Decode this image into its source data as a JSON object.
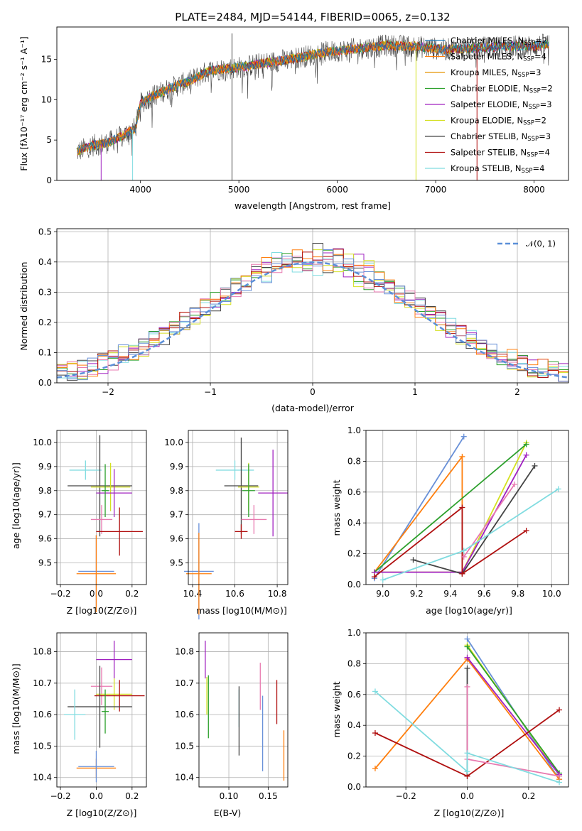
{
  "colors": {
    "chabrier_miles": "#1f77b4",
    "salpeter_miles": "#ff7f0e",
    "kroupa_miles": "#e59400",
    "chabrier_elodie": "#2ca02c",
    "salpeter_elodie": "#a020c0",
    "kroupa_elodie": "#d4e020",
    "chabrier_stelib": "#444444",
    "salpeter_stelib": "#b01010",
    "kroupa_stelib": "#80dce0",
    "pink": "#e87ab0",
    "blue2": "#6890d8",
    "grid": "#b0b0b0"
  },
  "chart_data": [
    {
      "id": "spectrum",
      "type": "line",
      "title": "PLATE=2484, MJD=54144, FIBERID=0065, z=0.132",
      "xlabel": "wavelength [Angstrom, rest frame]",
      "ylabel": "Flux [f$_\\lambda$10$^{-17}$ erg cm$^{-2}$ s$^{-1}$ A$^{-1}$]",
      "ylabel_display": "Flux [fλ10⁻¹⁷ erg cm⁻² s⁻¹ A⁻¹]",
      "xlim": [
        3150,
        8350
      ],
      "ylim": [
        0,
        19
      ],
      "xticks": [
        4000,
        5000,
        6000,
        7000,
        8000
      ],
      "yticks": [
        0,
        5,
        10,
        15
      ],
      "grid": false,
      "legend_position": "top-right",
      "envelope": {
        "x": [
          3350,
          3500,
          3650,
          3800,
          3950,
          4000,
          4100,
          4300,
          4500,
          4700,
          5000,
          5300,
          5600,
          5900,
          6200,
          6500,
          6800,
          7100,
          7400,
          7700,
          8000,
          8150
        ],
        "y": [
          3.5,
          4.3,
          4.6,
          5.4,
          6.5,
          9.5,
          10.3,
          11.4,
          12.3,
          13.6,
          14.0,
          14.6,
          15.2,
          15.9,
          16.3,
          16.7,
          16.6,
          16.2,
          16.4,
          16.6,
          16.6,
          16.9
        ]
      },
      "series": [
        {
          "name": "Chabrier MILES, N$_{SSP}$=2",
          "label": "Chabrier MILES, N",
          "sub": "SSP",
          "suffix": "=2",
          "color_key": "chabrier_miles"
        },
        {
          "name": "Salpeter MILES, N$_{SSP}$=4",
          "label": "Salpeter MILES, N",
          "sub": "SSP",
          "suffix": "=4",
          "color_key": "salpeter_miles"
        },
        {
          "name": "Kroupa MILES, N$_{SSP}$=3",
          "label": "Kroupa MILES, N",
          "sub": "SSP",
          "suffix": "=3",
          "color_key": "kroupa_miles"
        },
        {
          "name": "Chabrier ELODIE, N$_{SSP}$=2",
          "label": "Chabrier ELODIE, N",
          "sub": "SSP",
          "suffix": "=2",
          "color_key": "chabrier_elodie"
        },
        {
          "name": "Salpeter ELODIE, N$_{SSP}$=3",
          "label": "Salpeter ELODIE, N",
          "sub": "SSP",
          "suffix": "=3",
          "color_key": "salpeter_elodie"
        },
        {
          "name": "Kroupa ELODIE, N$_{SSP}$=2",
          "label": "Kroupa ELODIE, N",
          "sub": "SSP",
          "suffix": "=2",
          "color_key": "kroupa_elodie"
        },
        {
          "name": "Chabrier STELIB, N$_{SSP}$=3",
          "label": "Chabrier STELIB, N",
          "sub": "SSP",
          "suffix": "=3",
          "color_key": "chabrier_stelib"
        },
        {
          "name": "Salpeter STELIB, N$_{SSP}$=4",
          "label": "Salpeter STELIB, N",
          "sub": "SSP",
          "suffix": "=4",
          "color_key": "salpeter_stelib"
        },
        {
          "name": "Kroupa STELIB, N$_{SSP}$=4",
          "label": "Kroupa STELIB, N",
          "sub": "SSP",
          "suffix": "=4",
          "color_key": "kroupa_stelib"
        }
      ]
    },
    {
      "id": "residuals",
      "type": "histogram",
      "xlabel": "(data-model)/error",
      "ylabel": "Normed distribution",
      "xlim": [
        -2.5,
        2.5
      ],
      "ylim": [
        0,
        0.51
      ],
      "xticks": [
        -2,
        -1,
        0,
        1,
        2
      ],
      "yticks": [
        0.0,
        0.1,
        0.2,
        0.3,
        0.4,
        0.5
      ],
      "grid": true,
      "legend": "$\\mathcal{N}(0,1)$",
      "legend_display": "𝒩(0, 1)",
      "legend_position": "top-right",
      "bin_width": 0.1
    },
    {
      "id": "age_vs_Z",
      "type": "errorbar",
      "xlabel": "Z [log$_{10}$($Z/Z_\\odot$)]",
      "ylabel": "age  [log$_{10}$($age/yr$)]",
      "xlim": [
        -0.22,
        0.28
      ],
      "ylim": [
        9.41,
        10.05
      ],
      "xticks": [
        -0.2,
        0.0,
        0.2
      ],
      "yticks": [
        9.5,
        9.6,
        9.7,
        9.8,
        9.9,
        10.0
      ],
      "grid": true,
      "points": [
        {
          "x": -0.06,
          "xerr": 0.09,
          "y": 9.885,
          "yerr": 0.04,
          "color_key": "kroupa_stelib"
        },
        {
          "x": 0.02,
          "xerr": 0.18,
          "y": 9.82,
          "yerr": 0.21,
          "color_key": "chabrier_stelib"
        },
        {
          "x": 0.08,
          "xerr": 0.11,
          "y": 9.815,
          "yerr": 0.1,
          "color_key": "kroupa_elodie"
        },
        {
          "x": 0.1,
          "xerr": 0.1,
          "y": 9.79,
          "yerr": 0.1,
          "color_key": "salpeter_elodie"
        },
        {
          "x": 0.03,
          "xerr": 0.06,
          "y": 9.68,
          "yerr": 0.06,
          "color_key": "pink"
        },
        {
          "x": 0.13,
          "xerr": 0.13,
          "y": 9.63,
          "yerr": 0.1,
          "color_key": "salpeter_stelib"
        },
        {
          "x": 0.0,
          "xerr": 0.1,
          "y": 9.465,
          "yerr": 0.15,
          "color_key": "blue2"
        },
        {
          "x": 0.0,
          "xerr": 0.11,
          "y": 9.455,
          "yerr": 0.16,
          "color_key": "salpeter_miles"
        },
        {
          "x": 0.05,
          "xerr": 0.02,
          "y": 9.8,
          "yerr": 0.11,
          "color_key": "chabrier_elodie"
        }
      ]
    },
    {
      "id": "age_vs_mass",
      "type": "errorbar",
      "xlabel": "mass [log$_{10}$($M/M_\\odot$)]",
      "ylabel": "",
      "xlim": [
        10.38,
        10.85
      ],
      "ylim": [
        9.41,
        10.05
      ],
      "xticks": [
        10.4,
        10.6,
        10.8
      ],
      "yticks": [
        9.5,
        9.6,
        9.7,
        9.8,
        9.9,
        10.0
      ],
      "grid": true,
      "points": [
        {
          "x": 10.6,
          "xerr": 0.09,
          "y": 9.885,
          "yerr": 0.04,
          "color_key": "kroupa_stelib"
        },
        {
          "x": 10.63,
          "xerr": 0.08,
          "y": 9.82,
          "yerr": 0.2,
          "color_key": "chabrier_stelib"
        },
        {
          "x": 10.665,
          "xerr": 0.05,
          "y": 9.815,
          "yerr": 0.1,
          "color_key": "kroupa_elodie"
        },
        {
          "x": 10.78,
          "xerr": 0.07,
          "y": 9.79,
          "yerr": 0.18,
          "color_key": "salpeter_elodie"
        },
        {
          "x": 10.69,
          "xerr": 0.06,
          "y": 9.68,
          "yerr": 0.06,
          "color_key": "pink"
        },
        {
          "x": 10.63,
          "xerr": 0.03,
          "y": 9.63,
          "yerr": 0.03,
          "color_key": "salpeter_stelib"
        },
        {
          "x": 10.43,
          "xerr": 0.07,
          "y": 9.465,
          "yerr": 0.2,
          "color_key": "blue2"
        },
        {
          "x": 10.43,
          "xerr": 0.06,
          "y": 9.455,
          "yerr": 0.17,
          "color_key": "salpeter_miles"
        },
        {
          "x": 10.665,
          "xerr": 0.03,
          "y": 9.8,
          "yerr": 0.11,
          "color_key": "chabrier_elodie"
        }
      ]
    },
    {
      "id": "weight_vs_age",
      "type": "line",
      "xlabel": "age  [log$_{10}$($age/yr$)]",
      "ylabel": "mass weight",
      "xlim": [
        8.9,
        10.1
      ],
      "ylim": [
        0,
        1.0
      ],
      "xticks": [
        9.0,
        9.2,
        9.4,
        9.6,
        9.8,
        10.0
      ],
      "yticks": [
        0.0,
        0.2,
        0.4,
        0.6,
        0.8,
        1.0
      ],
      "grid": true,
      "series": [
        {
          "color_key": "blue2",
          "x": [
            8.95,
            9.48
          ],
          "y": [
            0.04,
            0.96
          ]
        },
        {
          "color_key": "salpeter_miles",
          "x": [
            8.95,
            9.47,
            9.47
          ],
          "y": [
            0.08,
            0.83,
            0.08
          ]
        },
        {
          "color_key": "kroupa_elodie",
          "x": [
            8.95,
            9.47,
            9.85
          ],
          "y": [
            0.08,
            0.08,
            0.92
          ]
        },
        {
          "color_key": "chabrier_elodie",
          "x": [
            8.95,
            9.85
          ],
          "y": [
            0.08,
            0.91
          ]
        },
        {
          "color_key": "salpeter_elodie",
          "x": [
            8.95,
            9.47,
            9.85
          ],
          "y": [
            0.08,
            0.08,
            0.84
          ]
        },
        {
          "color_key": "chabrier_stelib",
          "x": [
            9.18,
            9.47,
            9.9
          ],
          "y": [
            0.16,
            0.07,
            0.77
          ]
        },
        {
          "color_key": "salpeter_stelib",
          "x": [
            8.95,
            9.47,
            9.47,
            9.85
          ],
          "y": [
            0.05,
            0.5,
            0.07,
            0.35
          ]
        },
        {
          "color_key": "pink",
          "x": [
            9.48,
            9.78
          ],
          "y": [
            0.18,
            0.65
          ]
        },
        {
          "color_key": "kroupa_stelib",
          "x": [
            9.0,
            9.48,
            10.04
          ],
          "y": [
            0.03,
            0.22,
            0.62
          ]
        }
      ]
    },
    {
      "id": "mass_vs_Z",
      "type": "errorbar",
      "xlabel": "Z [log$_{10}$($Z/Z_\\odot$)]",
      "ylabel": "mass [log$_{10}$($M/M_\\odot$)]",
      "xlim": [
        -0.22,
        0.28
      ],
      "ylim": [
        10.37,
        10.86
      ],
      "xticks": [
        -0.2,
        0.0,
        0.2
      ],
      "yticks": [
        10.4,
        10.5,
        10.6,
        10.7,
        10.8
      ],
      "grid": true,
      "points": [
        {
          "x": 0.1,
          "xerr": 0.1,
          "y": 10.775,
          "yerr": 0.06,
          "color_key": "salpeter_elodie"
        },
        {
          "x": 0.03,
          "xerr": 0.06,
          "y": 10.69,
          "yerr": 0.06,
          "color_key": "pink"
        },
        {
          "x": 0.1,
          "xerr": 0.1,
          "y": 10.665,
          "yerr": 0.05,
          "color_key": "kroupa_elodie"
        },
        {
          "x": 0.13,
          "xerr": 0.14,
          "y": 10.66,
          "yerr": 0.05,
          "color_key": "salpeter_stelib"
        },
        {
          "x": 0.02,
          "xerr": 0.18,
          "y": 10.625,
          "yerr": 0.13,
          "color_key": "chabrier_stelib"
        },
        {
          "x": -0.12,
          "xerr": 0.06,
          "y": 10.6,
          "yerr": 0.08,
          "color_key": "kroupa_stelib"
        },
        {
          "x": 0.0,
          "xerr": 0.11,
          "y": 10.43,
          "yerr": 0.03,
          "color_key": "salpeter_miles"
        },
        {
          "x": 0.0,
          "xerr": 0.1,
          "y": 10.435,
          "yerr": 0.05,
          "color_key": "blue2"
        },
        {
          "x": 0.05,
          "xerr": 0.02,
          "y": 10.61,
          "yerr": 0.07,
          "color_key": "chabrier_elodie"
        }
      ]
    },
    {
      "id": "mass_vs_ebv",
      "type": "errorbar",
      "xlabel": "E(B-V)",
      "ylabel": "",
      "xlim": [
        0.062,
        0.175
      ],
      "ylim": [
        10.37,
        10.86
      ],
      "xticks": [
        0.1,
        0.15
      ],
      "yticks": [
        10.4,
        10.5,
        10.6,
        10.7,
        10.8
      ],
      "grid": true,
      "points": [
        {
          "x": 0.07,
          "y": 10.775,
          "yerr": 0.06,
          "color_key": "salpeter_elodie"
        },
        {
          "x": 0.072,
          "y": 10.66,
          "yerr": 0.06,
          "color_key": "kroupa_elodie"
        },
        {
          "x": 0.074,
          "y": 10.625,
          "yerr": 0.1,
          "color_key": "chabrier_elodie"
        },
        {
          "x": 0.113,
          "y": 10.62,
          "yerr": 0.06,
          "color_key": "kroupa_stelib"
        },
        {
          "x": 0.113,
          "y": 10.58,
          "yerr": 0.11,
          "color_key": "chabrier_stelib"
        },
        {
          "x": 0.14,
          "y": 10.69,
          "yerr": 0.075,
          "color_key": "pink"
        },
        {
          "x": 0.143,
          "y": 10.54,
          "yerr": 0.12,
          "color_key": "blue2"
        },
        {
          "x": 0.161,
          "y": 10.64,
          "yerr": 0.07,
          "color_key": "salpeter_stelib"
        },
        {
          "x": 0.17,
          "y": 10.47,
          "yerr": 0.08,
          "color_key": "salpeter_miles"
        }
      ]
    },
    {
      "id": "weight_vs_Z",
      "type": "line",
      "xlabel": "Z [log$_{10}$($Z/Z_\\odot$)]",
      "ylabel": "mass weight",
      "xlim": [
        -0.33,
        0.33
      ],
      "ylim": [
        0,
        1.0
      ],
      "xticks": [
        -0.2,
        0.0,
        0.2
      ],
      "yticks": [
        0.0,
        0.2,
        0.4,
        0.6,
        0.8,
        1.0
      ],
      "grid": true,
      "series": [
        {
          "color_key": "blue2",
          "x": [
            0.0,
            0.3
          ],
          "y": [
            0.96,
            0.05
          ]
        },
        {
          "color_key": "salpeter_miles",
          "x": [
            -0.3,
            0.0,
            0.3
          ],
          "y": [
            0.12,
            0.83,
            0.05
          ]
        },
        {
          "color_key": "kroupa_elodie",
          "x": [
            0.0,
            0.3
          ],
          "y": [
            0.92,
            0.08
          ]
        },
        {
          "color_key": "chabrier_elodie",
          "x": [
            0.0,
            0.3
          ],
          "y": [
            0.91,
            0.09
          ]
        },
        {
          "color_key": "salpeter_elodie",
          "x": [
            0.0,
            0.3
          ],
          "y": [
            0.84,
            0.08
          ]
        },
        {
          "color_key": "chabrier_stelib",
          "x": [
            0.0,
            0.0
          ],
          "y": [
            0.77,
            0.07
          ]
        },
        {
          "color_key": "salpeter_stelib",
          "x": [
            -0.3,
            0.0,
            0.3
          ],
          "y": [
            0.35,
            0.07,
            0.5
          ]
        },
        {
          "color_key": "pink",
          "x": [
            0.0,
            0.0,
            0.3
          ],
          "y": [
            0.65,
            0.18,
            0.07
          ]
        },
        {
          "color_key": "kroupa_stelib",
          "x": [
            -0.3,
            0.0,
            0.0,
            0.3
          ],
          "y": [
            0.62,
            0.1,
            0.22,
            0.03
          ]
        }
      ]
    }
  ]
}
